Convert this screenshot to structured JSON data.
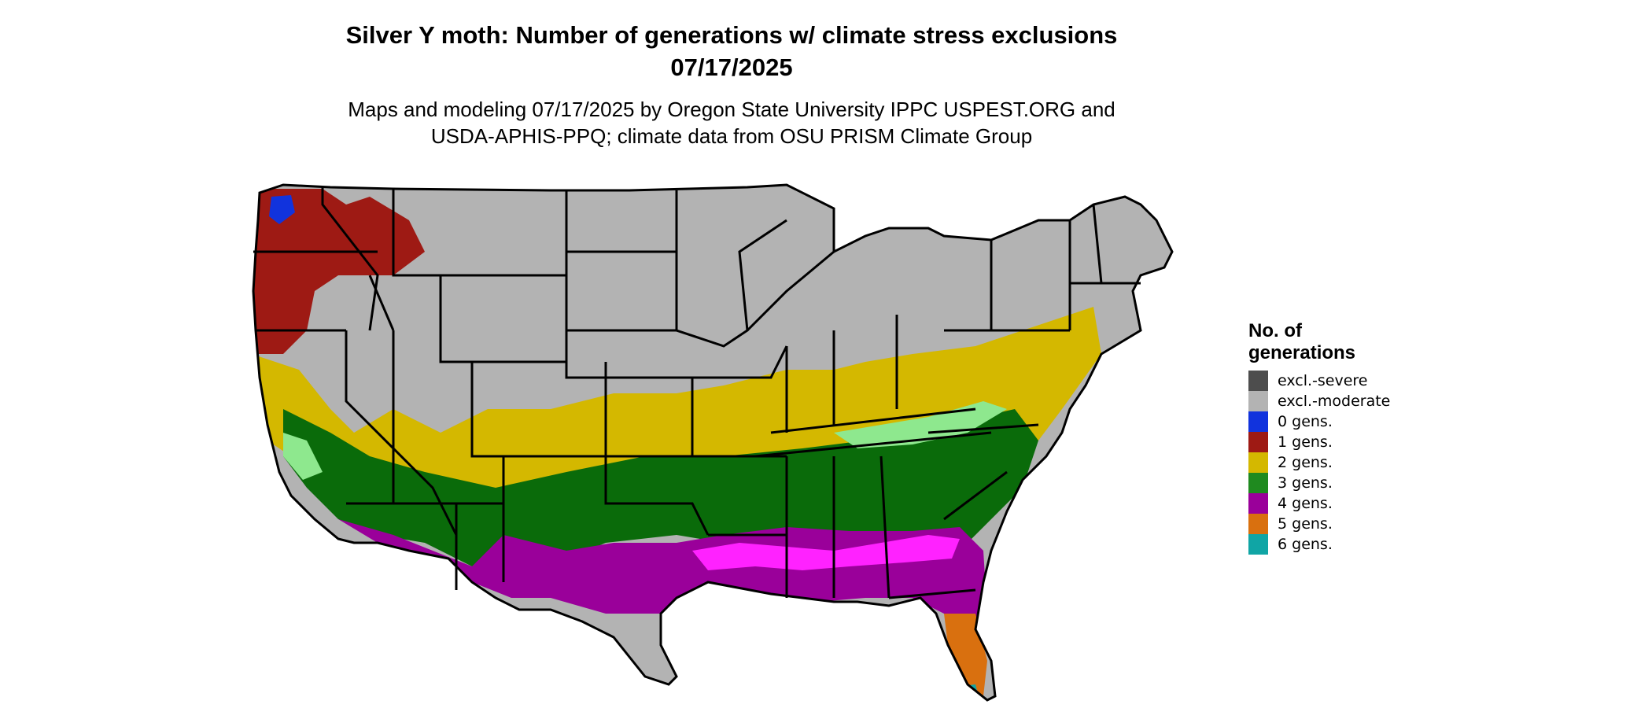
{
  "title_line1": "Silver Y moth: Number of generations w/ climate stress exclusions",
  "title_line2": "07/17/2025",
  "subtitle_line1": "Maps and modeling 07/17/2025 by Oregon State University IPPC USPEST.ORG and",
  "subtitle_line2": "USDA-APHIS-PPQ; climate data from OSU PRISM Climate Group",
  "legend": {
    "title_line1": "No. of",
    "title_line2": "generations",
    "items": [
      {
        "label": "excl.-severe",
        "color": "#4d4d4d"
      },
      {
        "label": "excl.-moderate",
        "color": "#b3b3b3"
      },
      {
        "label": "0 gens.",
        "color": "#1133dd"
      },
      {
        "label": "1 gens.",
        "color": "#9e1a14"
      },
      {
        "label": "2 gens.",
        "color": "#d4b800"
      },
      {
        "label": "3 gens.",
        "color": "#1f8a1f"
      },
      {
        "label": "4 gens.",
        "color": "#9a009a"
      },
      {
        "label": "5 gens.",
        "color": "#d9700f"
      },
      {
        "label": "6 gens.",
        "color": "#10a5a5"
      }
    ]
  },
  "map_colors": {
    "gens_3_dark": "#0a6b0a",
    "gens_3_light": "#8ee88e",
    "gens_4_bright": "#ff22ff",
    "gens_2_yellow": "#ffff00",
    "excl_moderate": "#b3b3b3"
  }
}
